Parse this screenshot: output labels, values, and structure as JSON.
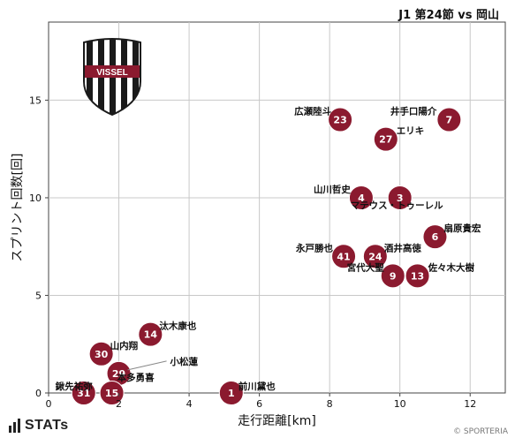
{
  "header": {
    "title": "J1 第24節 vs 岡山"
  },
  "logo": {
    "text": "VISSEL",
    "colors": {
      "stripe": "#8b1a2f",
      "dark": "#1a1a1a",
      "light": "#ffffff"
    }
  },
  "footer": {
    "brand": "STATs",
    "credit": "© SPORTERIA"
  },
  "colors": {
    "point": "#8b1a2f",
    "grid": "#c8c8c8",
    "axis": "#444444"
  },
  "chart_data": {
    "type": "scatter",
    "xlabel": "走行距離[km]",
    "ylabel": "スプリント回数[回]",
    "xlim": [
      0,
      13
    ],
    "ylim": [
      0,
      19
    ],
    "xticks": [
      0,
      2,
      4,
      6,
      8,
      10,
      12
    ],
    "yticks": [
      0,
      5,
      10,
      15
    ],
    "grid": true,
    "points": [
      {
        "number": "7",
        "name": "井手口陽介",
        "x": 11.4,
        "y": 14
      },
      {
        "number": "23",
        "name": "広瀬陸斗",
        "x": 8.3,
        "y": 14
      },
      {
        "number": "27",
        "name": "エリキ",
        "x": 9.6,
        "y": 13
      },
      {
        "number": "4",
        "name": "山川哲史",
        "x": 8.9,
        "y": 10
      },
      {
        "number": "3",
        "name": "マテウス・トゥーレル",
        "x": 10.0,
        "y": 10
      },
      {
        "number": "6",
        "name": "扇原貴宏",
        "x": 11.0,
        "y": 8
      },
      {
        "number": "41",
        "name": "永戸勝也",
        "x": 8.4,
        "y": 7
      },
      {
        "number": "24",
        "name": "酒井高徳",
        "x": 9.3,
        "y": 7
      },
      {
        "number": "9",
        "name": "宮代大聖",
        "x": 9.8,
        "y": 6
      },
      {
        "number": "13",
        "name": "佐々木大樹",
        "x": 10.5,
        "y": 6
      },
      {
        "number": "14",
        "name": "汰木康也",
        "x": 2.9,
        "y": 3
      },
      {
        "number": "30",
        "name": "山内翔",
        "x": 1.5,
        "y": 2
      },
      {
        "number": "29",
        "name": "小松蓮",
        "x": 2.0,
        "y": 1
      },
      {
        "number": "15",
        "name": "本多勇喜",
        "x": 1.8,
        "y": 0
      },
      {
        "number": "31",
        "name": "鍬先祐弥",
        "x": 1.0,
        "y": 0
      },
      {
        "number": "1",
        "name": "前川黛也",
        "x": 5.2,
        "y": 0
      }
    ]
  }
}
